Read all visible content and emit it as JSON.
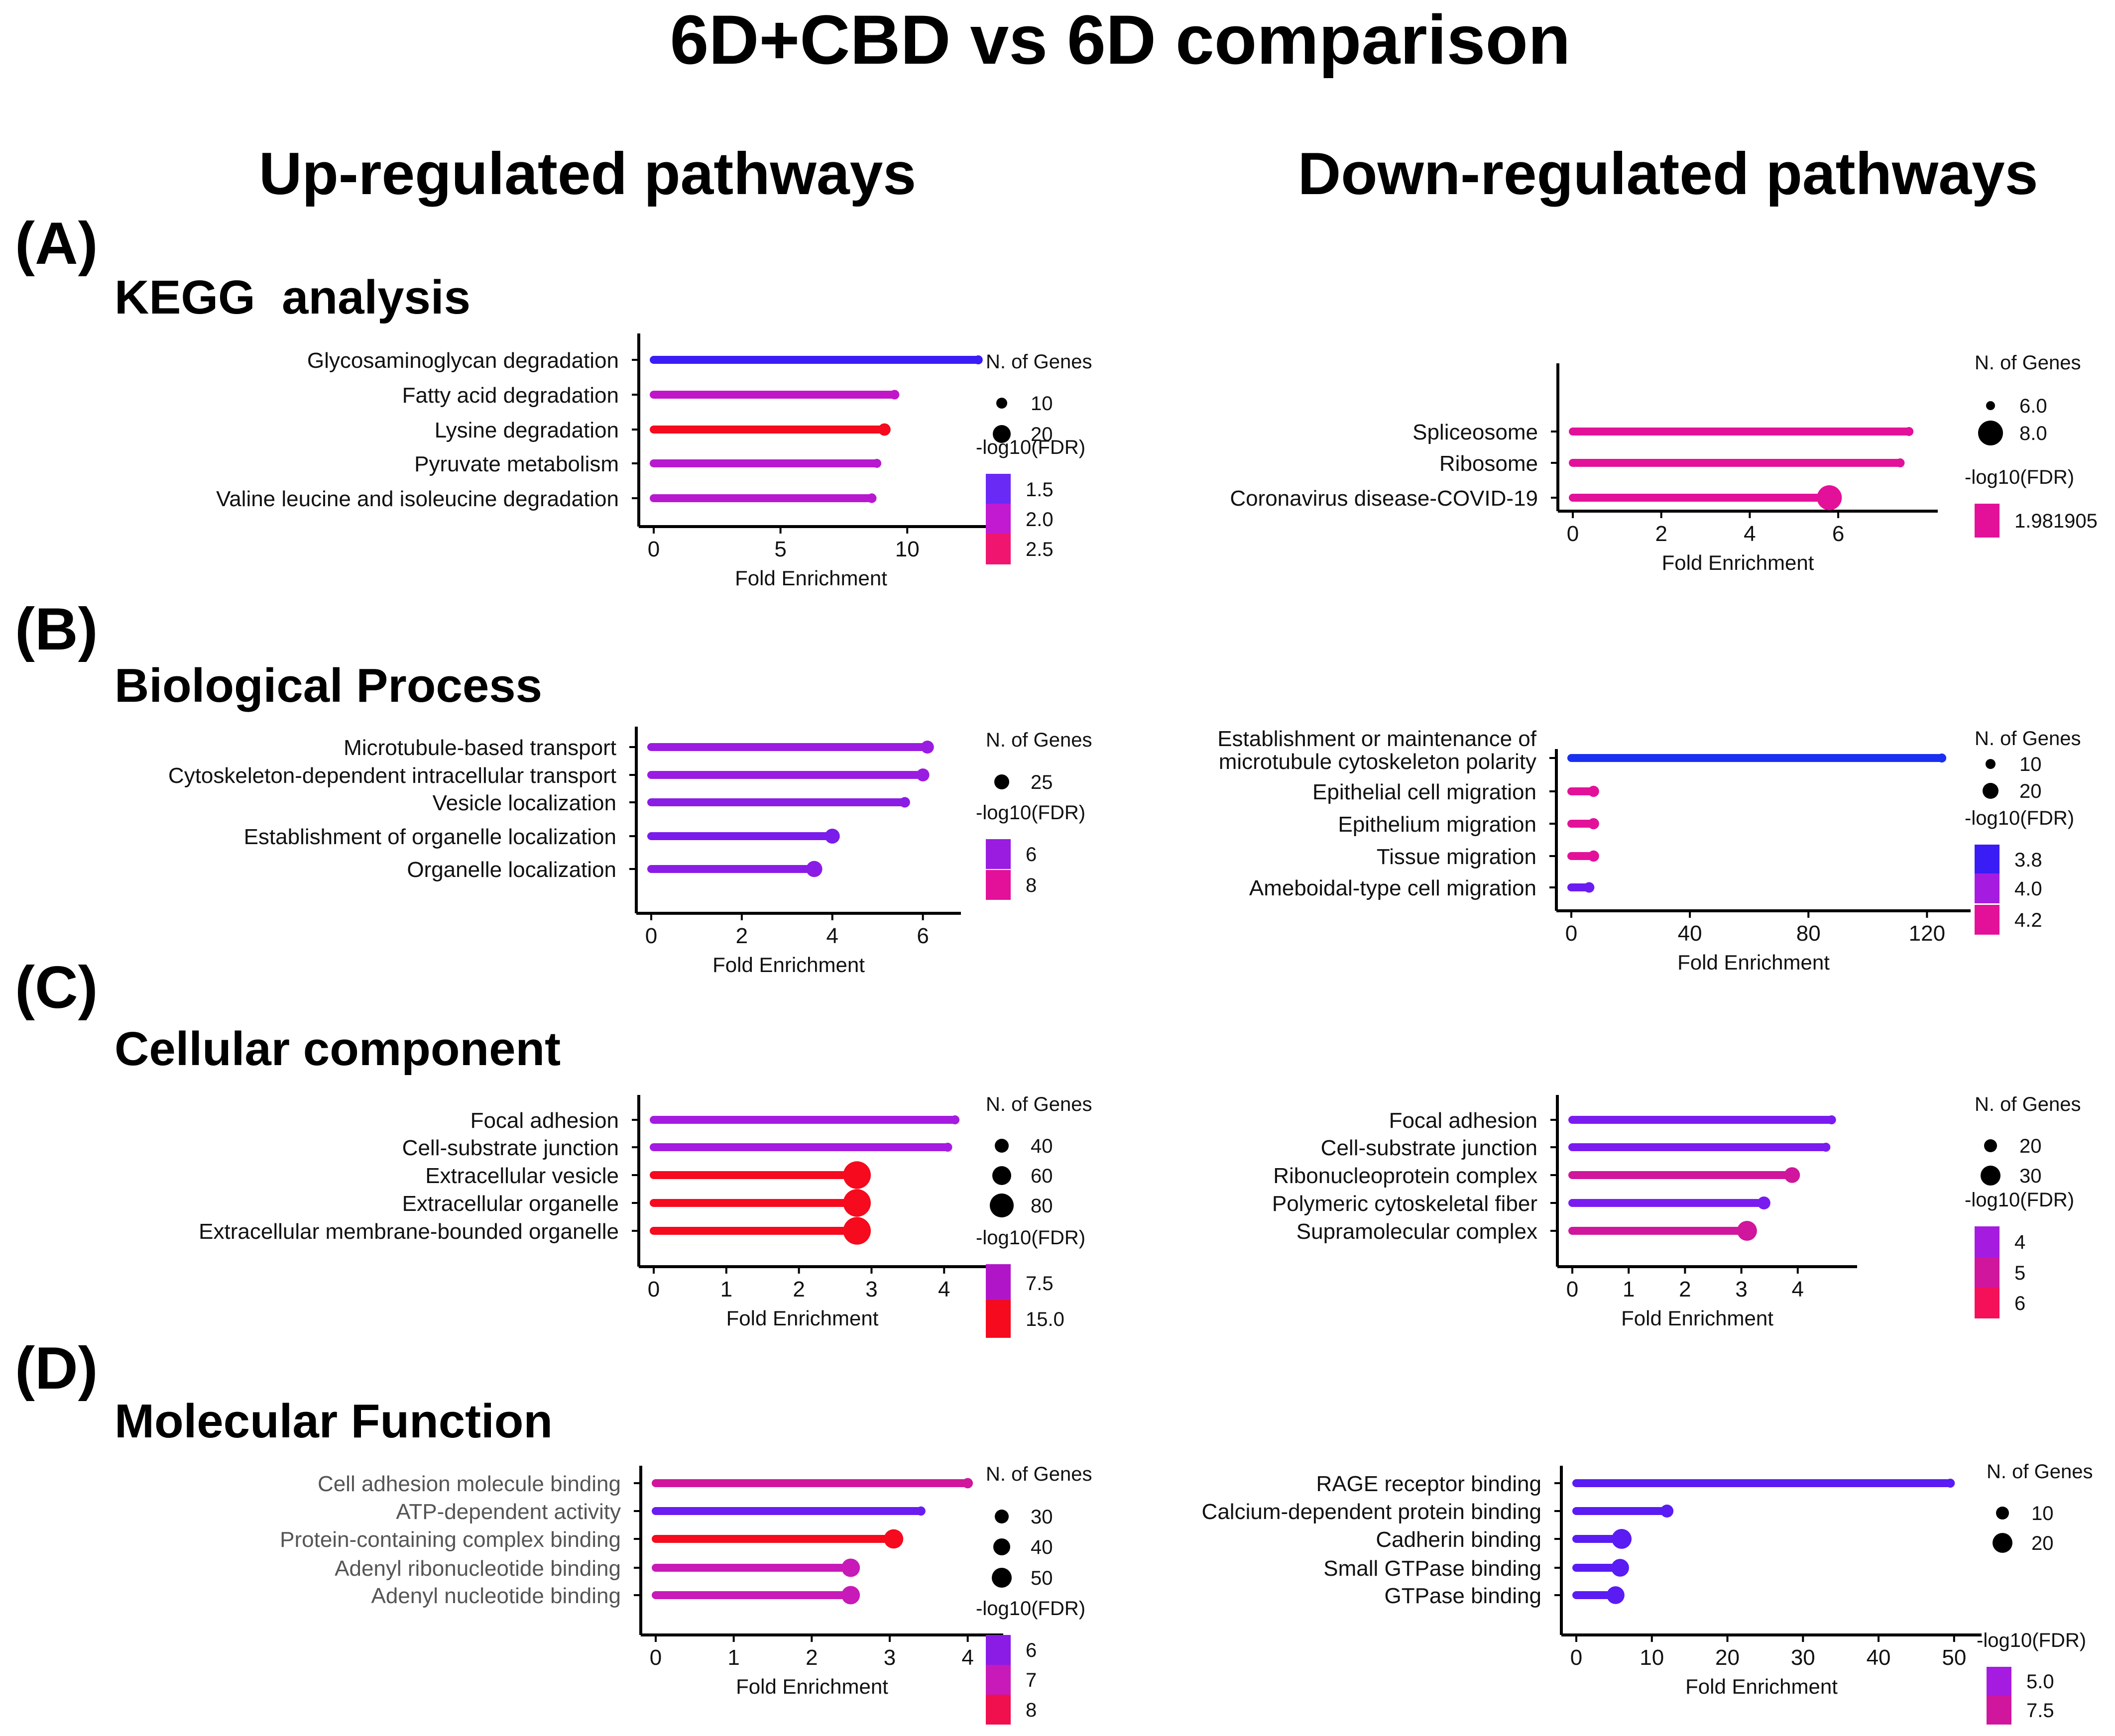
{
  "figure": {
    "title": "6D+CBD vs 6D comparison",
    "up_heading": "Up-regulated pathways",
    "down_heading": "Down-regulated pathways"
  },
  "sections": [
    {
      "letter": "(A)",
      "name": "KEGG  analysis"
    },
    {
      "letter": "(B)",
      "name": "Biological Process"
    },
    {
      "letter": "(C)",
      "name": "Cellular component"
    },
    {
      "letter": "(D)",
      "name": "Molecular Function"
    }
  ],
  "colors": {
    "blue": "#3a1cf5",
    "purple": "#a51ce0",
    "magenta": "#e3119a",
    "red": "#f50a1e",
    "violet": "#6b1cf0"
  },
  "chart_data": [
    {
      "id": "kegg_up",
      "type": "lollipop",
      "xlabel": "Fold Enrichment",
      "xlim": [
        0,
        13
      ],
      "ticks": [
        0,
        5,
        10
      ],
      "categories": [
        "Glycosaminoglycan degradation",
        "Fatty acid degradation",
        "Lysine degradation",
        "Pyruvate metabolism",
        "Valine leucine and isoleucine degradation"
      ],
      "values": [
        12.8,
        9.5,
        9.1,
        8.8,
        8.6
      ],
      "genes": [
        4,
        8,
        12,
        7,
        8
      ],
      "fdr": [
        1.3,
        2.1,
        2.8,
        2.0,
        2.0
      ],
      "colors": [
        "#3a1cf5",
        "#c016c8",
        "#f50a1e",
        "#b818d0",
        "#b818d0"
      ],
      "size_legend": {
        "title": "N. of Genes",
        "labels": [
          "10",
          "20"
        ],
        "values": [
          10,
          20
        ]
      },
      "color_legend": {
        "title": "-log10(FDR)",
        "labels": [
          "1.5",
          "2.0",
          "2.5"
        ],
        "colors": [
          "#6a2af5",
          "#c11ad0",
          "#f01670"
        ]
      }
    },
    {
      "id": "kegg_down",
      "type": "lollipop",
      "xlabel": "Fold Enrichment",
      "xlim": [
        0,
        7.8
      ],
      "ticks": [
        0,
        2,
        4,
        6
      ],
      "categories": [
        "Spliceosome",
        "Ribosome",
        "Coronavirus disease-COVID-19"
      ],
      "values": [
        7.6,
        7.4,
        5.8
      ],
      "genes": [
        5,
        5,
        8
      ],
      "fdr": [
        1.981905,
        1.981905,
        1.981905
      ],
      "colors": [
        "#e3119a",
        "#e3119a",
        "#e3119a"
      ],
      "size_legend": {
        "title": "N. of Genes",
        "labels": [
          "6.0",
          "8.0"
        ],
        "values": [
          6,
          8
        ]
      },
      "color_legend": {
        "title": "-log10(FDR)",
        "labels": [
          "1.981905"
        ],
        "colors": [
          "#e3119a"
        ]
      }
    },
    {
      "id": "bp_up",
      "type": "lollipop",
      "xlabel": "Fold Enrichment",
      "xlim": [
        0,
        6.4
      ],
      "ticks": [
        0,
        2,
        4,
        6
      ],
      "categories": [
        "Microtubule-based transport",
        "Cytoskeleton-dependent intracellular transport",
        "Vesicle localization",
        "Establishment of organelle localization",
        "Organelle localization"
      ],
      "values": [
        6.1,
        6.0,
        5.6,
        4.0,
        3.6
      ],
      "genes": [
        20,
        20,
        14,
        25,
        28
      ],
      "fdr": [
        6.0,
        6.0,
        6.2,
        6.5,
        6.8
      ],
      "colors": [
        "#9a1ce0",
        "#9a1ce0",
        "#8a1ce6",
        "#7a1cea",
        "#8a1ce6"
      ],
      "size_legend": {
        "title": "N. of Genes",
        "labels": [
          "25"
        ],
        "values": [
          25
        ]
      },
      "color_legend": {
        "title": "-log10(FDR)",
        "labels": [
          "6",
          "8"
        ],
        "colors": [
          "#9a1ce0",
          "#e3119a"
        ]
      }
    },
    {
      "id": "bp_down",
      "type": "lollipop",
      "xlabel": "Fold Enrichment",
      "xlim": [
        0,
        128
      ],
      "ticks": [
        0,
        40,
        80,
        120
      ],
      "categories": [
        "Establishment or maintenance of microtubule cytoskeleton polarity",
        "Epithelial cell migration",
        "Epithelium migration",
        "Tissue migration",
        "Ameboidal-type cell migration"
      ],
      "values": [
        125,
        7.5,
        7.5,
        7.5,
        6.0
      ],
      "genes": [
        2,
        12,
        12,
        12,
        11
      ],
      "fdr": [
        3.7,
        4.2,
        4.2,
        4.2,
        3.9
      ],
      "colors": [
        "#1a30f0",
        "#e3119a",
        "#e3119a",
        "#e3119a",
        "#6b1cf0"
      ],
      "size_legend": {
        "title": "N. of Genes",
        "labels": [
          "10",
          "20"
        ],
        "values": [
          10,
          20
        ]
      },
      "color_legend": {
        "title": "-log10(FDR)",
        "labels": [
          "3.8",
          "4.0",
          "4.2"
        ],
        "colors": [
          "#3a1cf5",
          "#a51ce0",
          "#e3119a"
        ]
      }
    },
    {
      "id": "cc_up",
      "type": "lollipop",
      "xlabel": "Fold Enrichment",
      "xlim": [
        0,
        4.3
      ],
      "ticks": [
        0,
        1,
        2,
        3,
        4
      ],
      "categories": [
        "Focal adhesion",
        "Cell-substrate junction",
        "Extracellular vesicle",
        "Extracellular organelle",
        "Extracellular membrane-bounded organelle"
      ],
      "values": [
        4.15,
        4.05,
        2.8,
        2.8,
        2.8
      ],
      "genes": [
        15,
        15,
        95,
        95,
        95
      ],
      "fdr": [
        6.5,
        6.5,
        15.0,
        15.0,
        15.0
      ],
      "colors": [
        "#a51ce0",
        "#a51ce0",
        "#f50a1e",
        "#f50a1e",
        "#f50a1e"
      ],
      "size_legend": {
        "title": "N. of Genes",
        "labels": [
          "40",
          "60",
          "80"
        ],
        "values": [
          40,
          60,
          80
        ]
      },
      "color_legend": {
        "title": "-log10(FDR)",
        "labels": [
          "7.5",
          "15.0"
        ],
        "colors": [
          "#b016c8",
          "#f50a1e"
        ]
      }
    },
    {
      "id": "cc_down",
      "type": "lollipop",
      "xlabel": "Fold Enrichment",
      "xlim": [
        0,
        4.7
      ],
      "ticks": [
        0,
        1,
        2,
        3,
        4
      ],
      "categories": [
        "Focal adhesion",
        "Cell-substrate junction",
        "Ribonucleoprotein complex",
        "Polymeric cytoskeletal fiber",
        "Supramolecular complex"
      ],
      "values": [
        4.6,
        4.5,
        3.9,
        3.4,
        3.1
      ],
      "genes": [
        14,
        14,
        24,
        20,
        30
      ],
      "fdr": [
        3.8,
        3.8,
        5.6,
        3.8,
        5.8
      ],
      "colors": [
        "#7a1cf0",
        "#7a1cf0",
        "#d0169c",
        "#7a1cf0",
        "#d0169c"
      ],
      "size_legend": {
        "title": "N. of Genes",
        "labels": [
          "20",
          "30"
        ],
        "values": [
          20,
          30
        ]
      },
      "color_legend": {
        "title": "-log10(FDR)",
        "labels": [
          "4",
          "5",
          "6"
        ],
        "colors": [
          "#a51ce0",
          "#d0169c",
          "#f5105a"
        ]
      }
    },
    {
      "id": "mf_up",
      "type": "lollipop",
      "xlabel": "Fold Enrichment",
      "xlim": [
        0,
        4.2
      ],
      "ticks": [
        0,
        1,
        2,
        3,
        4
      ],
      "categories": [
        "Cell adhesion molecule binding",
        "ATP-dependent activity",
        "Protein-containing complex binding",
        "Adenyl ribonucleotide binding",
        "Adenyl nucleotide binding"
      ],
      "values": [
        4.0,
        3.4,
        3.05,
        2.5,
        2.5
      ],
      "genes": [
        18,
        14,
        48,
        45,
        45
      ],
      "fdr": [
        7.0,
        6.0,
        8.0,
        7.0,
        7.0
      ],
      "colors": [
        "#d0169c",
        "#6b1cf0",
        "#f50a1e",
        "#c81ab8",
        "#c81ab8"
      ],
      "size_legend": {
        "title": "N. of Genes",
        "labels": [
          "30",
          "40",
          "50"
        ],
        "values": [
          30,
          40,
          50
        ]
      },
      "color_legend": {
        "title": "-log10(FDR)",
        "labels": [
          "6",
          "7",
          "8"
        ],
        "colors": [
          "#8a1ce6",
          "#c81ab8",
          "#f0104e"
        ]
      }
    },
    {
      "id": "mf_down",
      "type": "lollipop",
      "xlabel": "Fold Enrichment",
      "xlim": [
        0,
        51
      ],
      "ticks": [
        0,
        10,
        20,
        30,
        40,
        50
      ],
      "categories": [
        "RAGE receptor binding",
        "Calcium-dependent protein binding",
        "Cadherin binding",
        "Small GTPase binding",
        "GTPase binding"
      ],
      "values": [
        49.5,
        12.0,
        6.0,
        5.8,
        5.2
      ],
      "genes": [
        3,
        10,
        20,
        17,
        17
      ],
      "fdr": [
        4.5,
        4.5,
        4.5,
        4.5,
        4.5
      ],
      "colors": [
        "#5a1cf2",
        "#5a1cf2",
        "#5a1cf2",
        "#5a1cf2",
        "#5a1cf2"
      ],
      "size_legend": {
        "title": "N. of Genes",
        "labels": [
          "10",
          "20"
        ],
        "values": [
          10,
          20
        ]
      },
      "color_legend": {
        "title": "-log10(FDR)",
        "labels": [
          "5.0",
          "7.5"
        ],
        "colors": [
          "#a51ce0",
          "#d0169c"
        ]
      }
    }
  ]
}
